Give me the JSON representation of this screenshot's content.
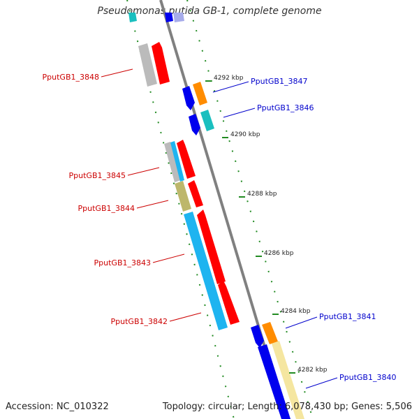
{
  "title": "Pseudomonas putida GB-1, complete genome",
  "footer": {
    "accession": "Accession: NC_010322",
    "summary": "Topology: circular; Length: 6,078,430 bp; Genes: 5,506"
  },
  "colors": {
    "backbone": "#808080",
    "tick": "#228B22",
    "left_label": "#CC0000",
    "right_label": "#0000CC",
    "red": "#FF0000",
    "grey": "#BBBBBB",
    "blue": "#0000EE",
    "orange": "#FF8C00",
    "teal": "#1ABFBF",
    "skyblue": "#1EB4F0",
    "khaki": "#BDB76B",
    "cream": "#F5E6A0"
  },
  "scale_labels": [
    "4292 kbp",
    "4290 kbp",
    "4288 kbp",
    "4286 kbp",
    "4284 kbp",
    "4282 kbp"
  ],
  "gene_labels": {
    "left": [
      "PputGB1_3848",
      "PputGB1_3845",
      "PputGB1_3844",
      "PputGB1_3843",
      "PputGB1_3842"
    ],
    "right": [
      "PputGB1_3847",
      "PputGB1_3846",
      "PputGB1_3841",
      "PputGB1_3840"
    ]
  }
}
